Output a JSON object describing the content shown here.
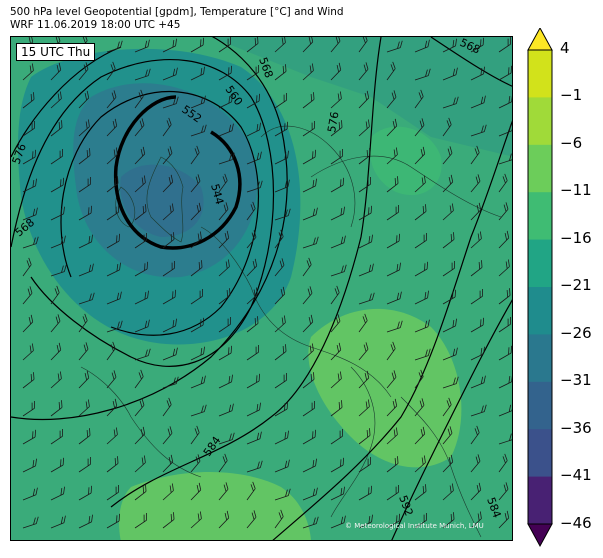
{
  "header": {
    "line1": "500 hPa level Geopotential [gpdm], Temperature [°C] and Wind",
    "line2": "WRF 11.06.2019 18:00 UTC +45"
  },
  "map": {
    "time_label": "15 UTC Thu",
    "copyright": "© Meteorological Institute Munich, LMU",
    "contour_labels": [
      "576",
      "568",
      "568",
      "568",
      "560",
      "552",
      "544",
      "576",
      "584",
      "584",
      "592"
    ]
  },
  "colorbar": {
    "labels": [
      "4",
      "−1",
      "−6",
      "−11",
      "−16",
      "−21",
      "−26",
      "−31",
      "−36",
      "−41",
      "−46"
    ],
    "colors": [
      "#fde725",
      "#d2e21b",
      "#a0da39",
      "#6ccd5a",
      "#3fbc73",
      "#21a585",
      "#1f8c8d",
      "#2a788e",
      "#33638d",
      "#3b518b",
      "#482173",
      "#440154"
    ]
  }
}
